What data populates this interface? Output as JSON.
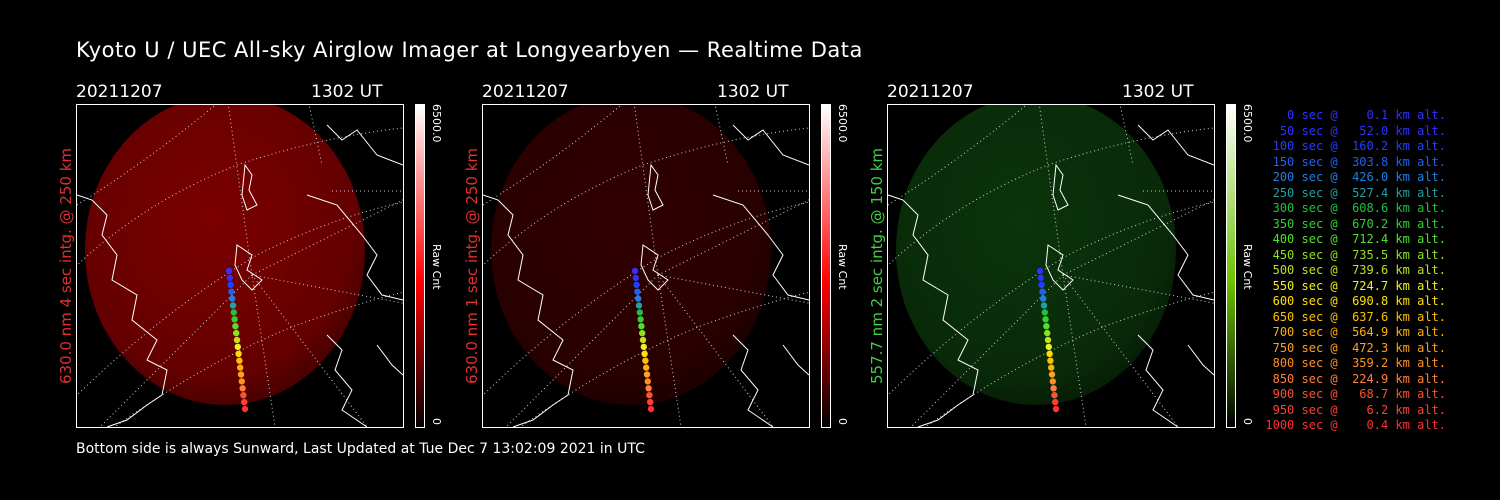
{
  "title": "Kyoto U / UEC All-sky Airglow Imager at Longyearbyen — Realtime Data",
  "panels": [
    {
      "date": "20211207",
      "time": "1302 UT",
      "side_label": "630.0 nm 4 sec intg. @ 250 km",
      "side_color": "#e03030",
      "cbar_max": "6500.0",
      "cbar_min": "0",
      "cbar_unit": "Raw Cnt",
      "cbar_color": "#ff0000",
      "glow_color": "#8a0000",
      "glow_opacity": 0.9
    },
    {
      "date": "20211207",
      "time": "1302 UT",
      "side_label": "630.0 nm 1 sec intg. @ 250 km",
      "side_color": "#e03030",
      "cbar_max": "6500.0",
      "cbar_min": "0",
      "cbar_unit": "Raw Cnt",
      "cbar_color": "#ff0000",
      "glow_color": "#3a0000",
      "glow_opacity": 0.85
    },
    {
      "date": "20211207",
      "time": "1302 UT",
      "side_label": "557.7 nm 2 sec intg. @ 150 km",
      "side_color": "#40d040",
      "cbar_max": "6500.0",
      "cbar_min": "0",
      "cbar_unit": "Raw Cnt",
      "cbar_color": "#6ac000",
      "glow_color": "#0c3a0c",
      "glow_opacity": 0.9
    }
  ],
  "legend": [
    {
      "text": "   0 sec @    0.1 km alt.",
      "color": "#3030ff"
    },
    {
      "text": "  50 sec @   52.0 km alt.",
      "color": "#3030ff"
    },
    {
      "text": " 100 sec @  160.2 km alt.",
      "color": "#2040ff"
    },
    {
      "text": " 150 sec @  303.8 km alt.",
      "color": "#2060f0"
    },
    {
      "text": " 200 sec @  426.0 km alt.",
      "color": "#2080e0"
    },
    {
      "text": " 250 sec @  527.4 km alt.",
      "color": "#20a0a0"
    },
    {
      "text": " 300 sec @  608.6 km alt.",
      "color": "#20c040"
    },
    {
      "text": " 350 sec @  670.2 km alt.",
      "color": "#30d030"
    },
    {
      "text": " 400 sec @  712.4 km alt.",
      "color": "#50e030"
    },
    {
      "text": " 450 sec @  735.5 km alt.",
      "color": "#90e020"
    },
    {
      "text": " 500 sec @  739.6 km alt.",
      "color": "#c0e020"
    },
    {
      "text": " 550 sec @  724.7 km alt.",
      "color": "#f0f020"
    },
    {
      "text": " 600 sec @  690.8 km alt.",
      "color": "#ffe000"
    },
    {
      "text": " 650 sec @  637.6 km alt.",
      "color": "#ffc000"
    },
    {
      "text": " 700 sec @  564.9 km alt.",
      "color": "#ffb000"
    },
    {
      "text": " 750 sec @  472.3 km alt.",
      "color": "#ffa020"
    },
    {
      "text": " 800 sec @  359.2 km alt.",
      "color": "#ff9020"
    },
    {
      "text": " 850 sec @  224.9 km alt.",
      "color": "#ff8040"
    },
    {
      "text": " 900 sec @   68.7 km alt.",
      "color": "#ff5030"
    },
    {
      "text": " 950 sec @    6.2 km alt.",
      "color": "#ff4030"
    },
    {
      "text": "1000 sec @    0.4 km alt.",
      "color": "#ff3030"
    }
  ],
  "footer": "Bottom side is always Sunward, Last Updated at Tue Dec  7 13:02:09 2021 in UTC"
}
